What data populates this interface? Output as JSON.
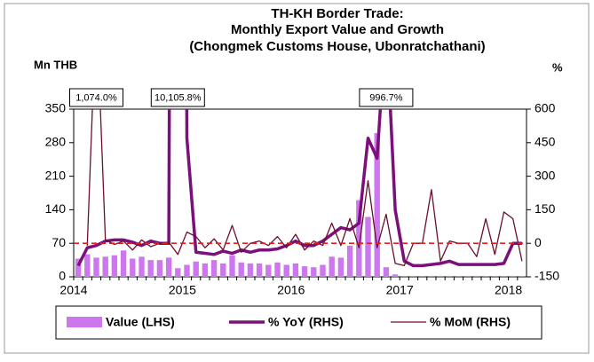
{
  "chart_data": {
    "type": "combo",
    "title": [
      "TH-KH Border Trade:",
      "Monthly Export Value and Growth",
      "(Chongmek Customs House,  Ubonratchathani)"
    ],
    "y_label": "Mn THB",
    "y2_label": "%",
    "categories": [
      "2014",
      null,
      null,
      null,
      null,
      null,
      null,
      null,
      null,
      null,
      null,
      null,
      "2015",
      null,
      null,
      null,
      null,
      null,
      null,
      null,
      null,
      null,
      null,
      null,
      "2016",
      null,
      null,
      null,
      null,
      null,
      null,
      null,
      null,
      null,
      null,
      null,
      "2017",
      null,
      null,
      null,
      null,
      null,
      null,
      null,
      null,
      null,
      null,
      null,
      "2018",
      null
    ],
    "ylim": [
      0,
      350
    ],
    "yticks": [
      0,
      70,
      140,
      210,
      280,
      350
    ],
    "y2lim": [
      -150,
      600
    ],
    "y2ticks": [
      -150,
      0,
      150,
      300,
      450,
      600
    ],
    "reference_line": {
      "axis": "y2",
      "value": 0,
      "color": "#e02020"
    },
    "legend": "bottom",
    "series": [
      {
        "name": "Value (LHS)",
        "type": "bar",
        "color": "#cc77ee",
        "values": [
          38,
          47,
          40,
          42,
          45,
          55,
          38,
          42,
          35,
          35,
          40,
          18,
          25,
          32,
          28,
          35,
          28,
          45,
          30,
          28,
          28,
          25,
          30,
          25,
          28,
          22,
          20,
          25,
          42,
          40,
          65,
          160,
          125,
          300,
          20,
          5,
          2,
          2,
          2,
          2,
          2,
          2,
          2,
          2,
          2,
          2,
          2,
          2,
          2,
          2
        ]
      },
      {
        "name": "% YoY (RHS)",
        "type": "line",
        "axis": "y2",
        "color": "#7b0f7b",
        "width": 3.5,
        "values": [
          -100,
          -20,
          -10,
          10,
          15,
          15,
          5,
          -10,
          10,
          0,
          0,
          10105.8,
          470,
          -40,
          -45,
          -50,
          -35,
          -45,
          -30,
          -40,
          -30,
          -30,
          -25,
          -10,
          10,
          -10,
          -10,
          10,
          40,
          70,
          60,
          90,
          470,
          380,
          996.7,
          150,
          -80,
          -100,
          -100,
          -95,
          -90,
          -80,
          -95,
          -95,
          -95,
          -95,
          -95,
          -90,
          0,
          0
        ],
        "value_labels": [
          null,
          null,
          null,
          null,
          null,
          null,
          null,
          null,
          null,
          null,
          null,
          "10,105.8%",
          null,
          null,
          null,
          null,
          null,
          null,
          null,
          null,
          null,
          null,
          null,
          null,
          null,
          null,
          null,
          null,
          null,
          null,
          null,
          null,
          null,
          null,
          "996.7%",
          null,
          null,
          null,
          null,
          null,
          null,
          null,
          null,
          null,
          null,
          null,
          null,
          null,
          null,
          null
        ]
      },
      {
        "name": "% MoM (RHS)",
        "type": "line",
        "axis": "y2",
        "color": "#6b0f2b",
        "width": 1.3,
        "values": [
          null,
          -10,
          1074.0,
          15,
          -5,
          10,
          -30,
          15,
          -15,
          0,
          5,
          -50,
          50,
          30,
          -20,
          20,
          -30,
          80,
          -40,
          0,
          10,
          -10,
          30,
          -20,
          40,
          -30,
          10,
          -10,
          90,
          -10,
          110,
          -20,
          280,
          -20,
          130,
          -90,
          -100,
          0,
          0,
          240,
          -80,
          10,
          0,
          0,
          -60,
          110,
          -50,
          140,
          110,
          -80
        ],
        "value_labels": [
          null,
          null,
          "1,074.0%",
          null,
          null,
          null,
          null,
          null,
          null,
          null,
          null,
          null,
          null,
          null,
          null,
          null,
          null,
          null,
          null,
          null,
          null,
          null,
          null,
          null,
          null,
          null,
          null,
          null,
          null,
          null,
          null,
          null,
          null,
          null,
          null,
          null,
          null,
          null,
          null,
          null,
          null,
          null,
          null,
          null,
          null,
          null,
          null,
          null,
          null,
          null
        ]
      }
    ]
  }
}
